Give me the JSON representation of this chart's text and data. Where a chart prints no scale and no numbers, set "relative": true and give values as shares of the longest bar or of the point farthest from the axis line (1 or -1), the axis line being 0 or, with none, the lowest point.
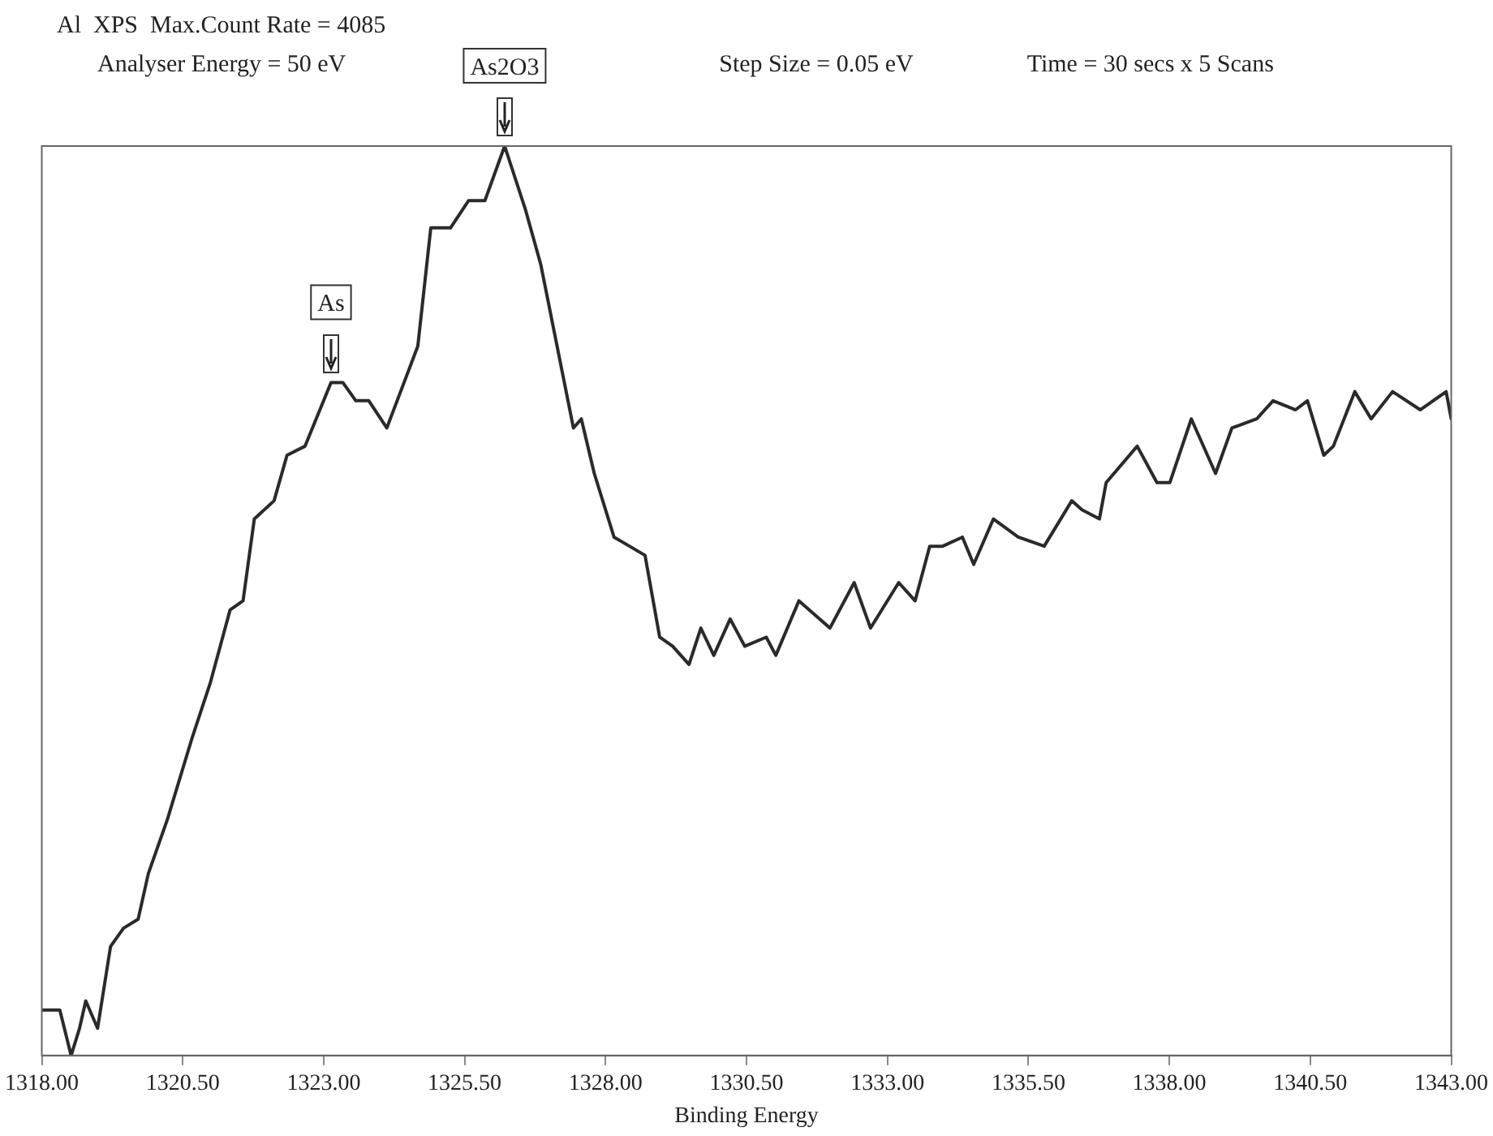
{
  "chart_data": {
    "type": "line",
    "title": "Al  XPS  Max.Count Rate = 4085",
    "xlabel": "Binding Energy",
    "relative": true,
    "annotations": [
      "Analyser Energy = 50 eV",
      "Step Size = 0.05 eV",
      "Time = 30 secs x 5 Scans",
      {
        "text": "As",
        "x": 1323.13,
        "y": 0.74
      },
      {
        "text": "As2O3",
        "x": 1326.21,
        "y": 1.0
      }
    ],
    "xlim": [
      1318,
      1343
    ],
    "xticks": [
      {
        "value": 1318,
        "label": "1318.00"
      },
      {
        "value": 1320.5,
        "label": "1320.50"
      },
      {
        "value": 1323,
        "label": "1323.00"
      },
      {
        "value": 1325.5,
        "label": "1325.50"
      },
      {
        "value": 1328,
        "label": "1328.00"
      },
      {
        "value": 1330.5,
        "label": "1330.50"
      },
      {
        "value": 1333,
        "label": "1333.00"
      },
      {
        "value": 1335.5,
        "label": "1335.50"
      },
      {
        "value": 1338,
        "label": "1338.00"
      },
      {
        "value": 1340.5,
        "label": "1340.50"
      },
      {
        "value": 1343,
        "label": "1343.00"
      }
    ],
    "grid": false,
    "legend": false,
    "marker": "none",
    "line_style": "solid",
    "series": [
      {
        "color": "#2a2a2a",
        "x": [
          1318.0,
          1318.32,
          1318.52,
          1318.67,
          1318.78,
          1318.99,
          1319.22,
          1319.45,
          1319.71,
          1319.89,
          1320.23,
          1320.67,
          1320.99,
          1321.34,
          1321.57,
          1321.77,
          1322.12,
          1322.35,
          1322.67,
          1323.13,
          1323.34,
          1323.57,
          1323.8,
          1324.12,
          1324.67,
          1324.9,
          1325.25,
          1325.57,
          1325.86,
          1326.21,
          1326.58,
          1326.85,
          1327.43,
          1327.57,
          1327.8,
          1328.15,
          1328.7,
          1328.96,
          1329.19,
          1329.48,
          1329.69,
          1329.92,
          1330.21,
          1330.47,
          1330.85,
          1331.02,
          1331.43,
          1331.98,
          1332.41,
          1332.7,
          1333.2,
          1333.49,
          1333.75,
          1333.98,
          1334.33,
          1334.53,
          1334.88,
          1335.32,
          1335.78,
          1336.27,
          1336.45,
          1336.76,
          1336.88,
          1337.43,
          1337.78,
          1338.01,
          1338.39,
          1338.82,
          1339.11,
          1339.55,
          1339.84,
          1340.24,
          1340.45,
          1340.74,
          1340.91,
          1341.29,
          1341.58,
          1341.96,
          1342.45,
          1342.91,
          1343.0
        ],
        "values": [
          0.05,
          0.05,
          0.0,
          0.03,
          0.06,
          0.03,
          0.12,
          0.14,
          0.15,
          0.2,
          0.26,
          0.35,
          0.41,
          0.49,
          0.5,
          0.59,
          0.61,
          0.66,
          0.67,
          0.74,
          0.74,
          0.72,
          0.72,
          0.69,
          0.78,
          0.91,
          0.91,
          0.94,
          0.94,
          1.0,
          0.93,
          0.87,
          0.69,
          0.7,
          0.64,
          0.57,
          0.55,
          0.46,
          0.45,
          0.43,
          0.47,
          0.44,
          0.48,
          0.45,
          0.46,
          0.44,
          0.5,
          0.47,
          0.52,
          0.47,
          0.52,
          0.5,
          0.56,
          0.56,
          0.57,
          0.54,
          0.59,
          0.57,
          0.56,
          0.61,
          0.6,
          0.59,
          0.63,
          0.67,
          0.63,
          0.63,
          0.7,
          0.64,
          0.69,
          0.7,
          0.72,
          0.71,
          0.72,
          0.66,
          0.67,
          0.73,
          0.7,
          0.73,
          0.71,
          0.73,
          0.7
        ]
      }
    ]
  }
}
